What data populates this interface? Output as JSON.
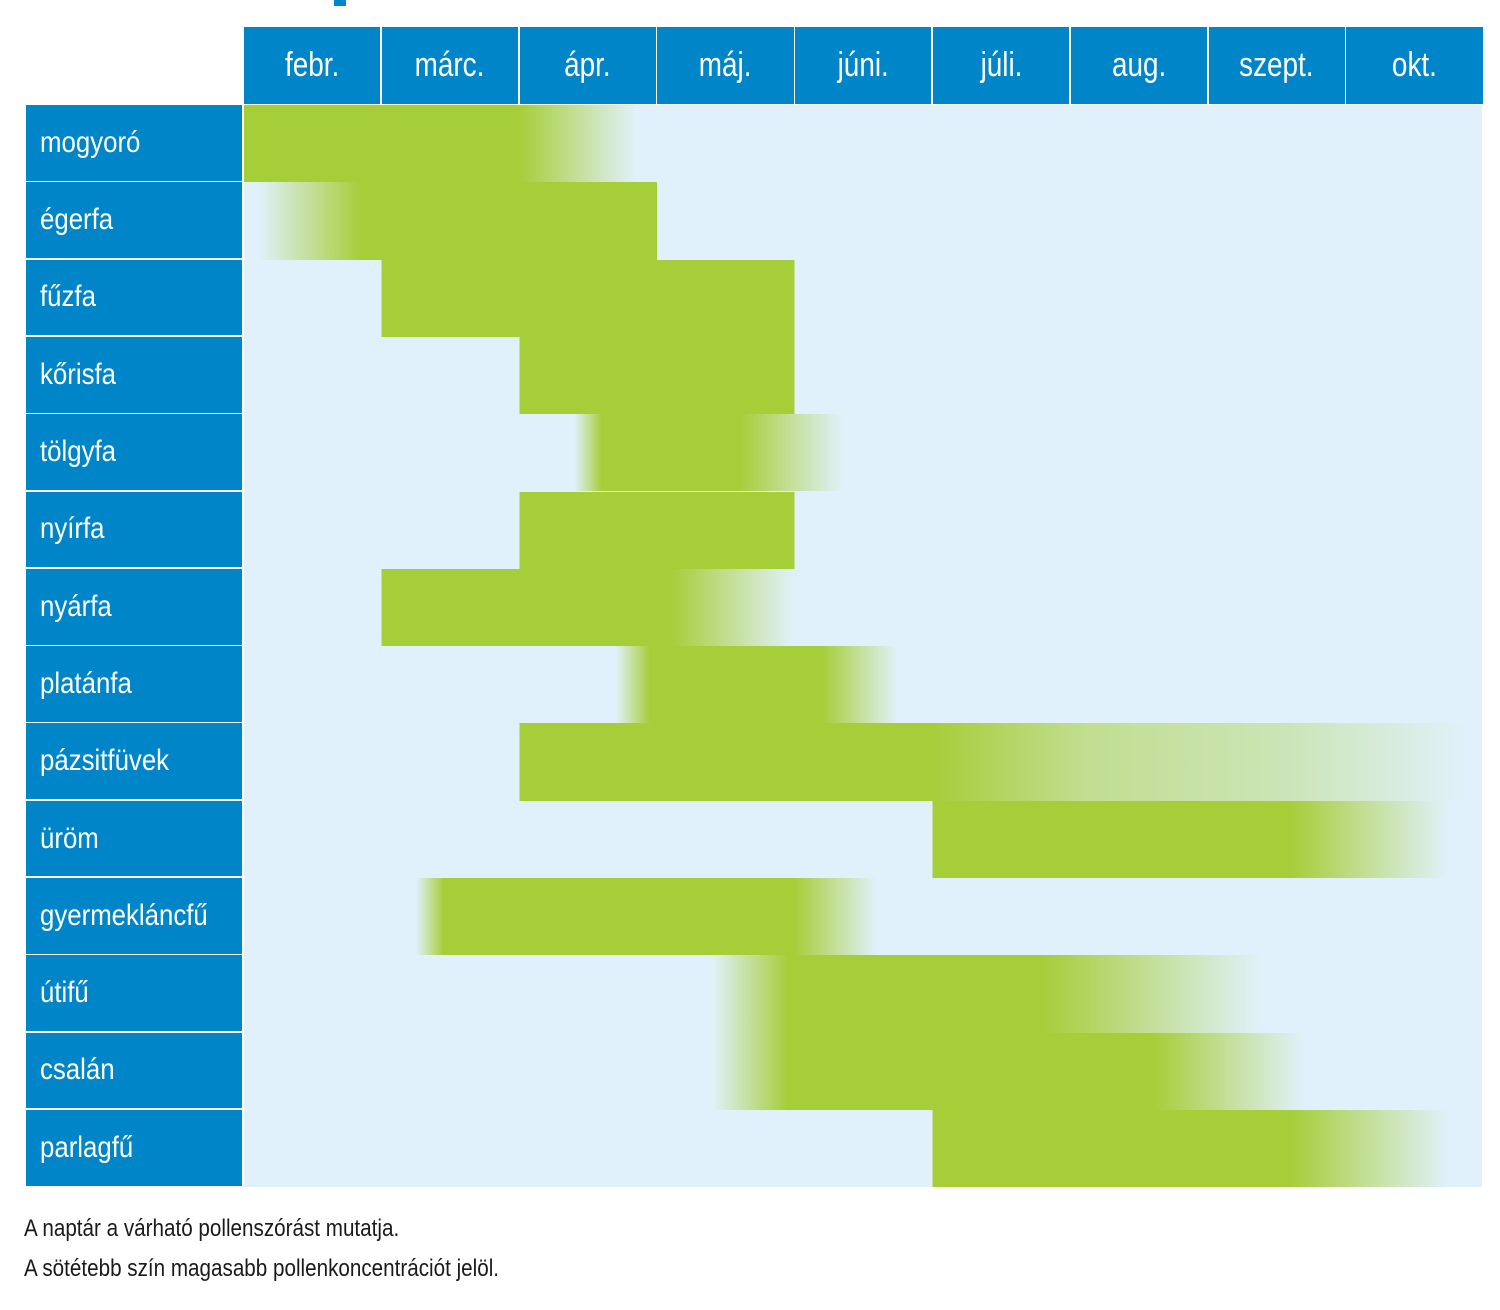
{
  "chart_data": {
    "type": "gantt",
    "bar_color": "#a6ce39",
    "header_color": "#0086c8",
    "background_color": "#e1f1fb",
    "months": [
      "febr.",
      "márc.",
      "ápr.",
      "máj.",
      "júni.",
      "júli.",
      "aug.",
      "szept.",
      "okt."
    ],
    "rows": [
      {
        "name": "mogyoró",
        "stops": [
          [
            0,
            0
          ],
          [
            0,
            1
          ],
          [
            2.0,
            1
          ],
          [
            2.85,
            0
          ]
        ]
      },
      {
        "name": "égerfa",
        "stops": [
          [
            0.1,
            0
          ],
          [
            0.85,
            1
          ],
          [
            3.0,
            1
          ],
          [
            3.0,
            0
          ]
        ]
      },
      {
        "name": "fűzfa",
        "stops": [
          [
            1.0,
            0
          ],
          [
            1.0,
            1
          ],
          [
            4.0,
            1
          ],
          [
            4.0,
            0
          ]
        ]
      },
      {
        "name": "kőrisfa",
        "stops": [
          [
            2.0,
            0
          ],
          [
            2.0,
            1
          ],
          [
            4.0,
            1
          ],
          [
            4.0,
            0
          ]
        ]
      },
      {
        "name": "tölgyfa",
        "stops": [
          [
            2.4,
            0
          ],
          [
            2.6,
            1
          ],
          [
            3.6,
            1
          ],
          [
            4.35,
            0
          ]
        ]
      },
      {
        "name": "nyírfa",
        "stops": [
          [
            2.0,
            0
          ],
          [
            2.0,
            1
          ],
          [
            4.0,
            1
          ],
          [
            4.0,
            0
          ]
        ]
      },
      {
        "name": "nyárfa",
        "stops": [
          [
            1.0,
            0
          ],
          [
            1.0,
            1
          ],
          [
            3.1,
            1
          ],
          [
            4.0,
            0
          ]
        ]
      },
      {
        "name": "platánfa",
        "stops": [
          [
            2.7,
            0
          ],
          [
            2.95,
            1
          ],
          [
            4.2,
            1
          ],
          [
            4.75,
            0
          ]
        ]
      },
      {
        "name": "pázsitfüvek",
        "stops": [
          [
            2.0,
            0
          ],
          [
            2.0,
            1
          ],
          [
            5.0,
            1
          ],
          [
            6.1,
            0.55
          ],
          [
            7.6,
            0.35
          ],
          [
            8.9,
            0
          ]
        ]
      },
      {
        "name": "üröm",
        "stops": [
          [
            5.0,
            0
          ],
          [
            5.0,
            1
          ],
          [
            7.6,
            1
          ],
          [
            8.75,
            0
          ]
        ]
      },
      {
        "name": "gyermekláncfű",
        "stops": [
          [
            1.25,
            0
          ],
          [
            1.45,
            1
          ],
          [
            4.0,
            1
          ],
          [
            4.6,
            0
          ]
        ]
      },
      {
        "name": "útifű",
        "stops": [
          [
            3.4,
            0
          ],
          [
            3.95,
            1
          ],
          [
            5.8,
            1
          ],
          [
            7.4,
            0
          ]
        ]
      },
      {
        "name": "csalán",
        "stops": [
          [
            3.4,
            0
          ],
          [
            3.95,
            1
          ],
          [
            6.6,
            1
          ],
          [
            7.7,
            0
          ]
        ]
      },
      {
        "name": "parlagfű",
        "stops": [
          [
            5.0,
            0
          ],
          [
            5.0,
            1
          ],
          [
            7.6,
            1
          ],
          [
            8.75,
            0
          ]
        ]
      }
    ]
  },
  "notes": [
    "A naptár a várható pollenszórást mutatja.",
    "A sötétebb szín magasabb pollenkoncentrációt jelöl."
  ]
}
